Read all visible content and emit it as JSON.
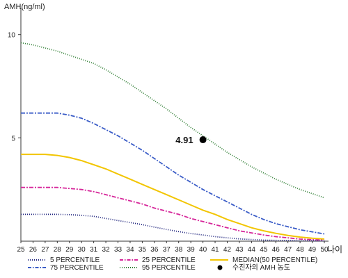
{
  "chart_data": {
    "type": "line",
    "ylabel": "AMH(ng/ml)",
    "xlabel": "나이",
    "xlim": [
      25,
      50
    ],
    "ylim": [
      0,
      11
    ],
    "y_ticks": [
      5,
      10
    ],
    "x": [
      25,
      26,
      27,
      28,
      29,
      30,
      31,
      32,
      33,
      34,
      35,
      36,
      37,
      38,
      39,
      40,
      41,
      42,
      43,
      44,
      45,
      46,
      47,
      48,
      49,
      50
    ],
    "series": [
      {
        "name": "95 PERCENTILE",
        "color": "#2e7d32",
        "dash": "1,2",
        "values": [
          9.6,
          9.5,
          9.35,
          9.2,
          9.0,
          8.8,
          8.6,
          8.3,
          7.95,
          7.6,
          7.2,
          6.8,
          6.4,
          5.95,
          5.5,
          5.1,
          4.7,
          4.3,
          3.95,
          3.6,
          3.3,
          3.0,
          2.75,
          2.5,
          2.3,
          2.1
        ]
      },
      {
        "name": "75 PERCENTILE",
        "color": "#3a5cc7",
        "dash": "6,2,2,2",
        "values": [
          6.2,
          6.2,
          6.2,
          6.2,
          6.1,
          5.95,
          5.7,
          5.4,
          5.1,
          4.75,
          4.4,
          4.0,
          3.6,
          3.2,
          2.85,
          2.5,
          2.2,
          1.9,
          1.6,
          1.3,
          1.05,
          0.85,
          0.7,
          0.55,
          0.45,
          0.35
        ]
      },
      {
        "name": "MEDIAN(50 PERCENTILE)",
        "color": "#f2c500",
        "dash": "",
        "values": [
          4.2,
          4.2,
          4.2,
          4.15,
          4.05,
          3.9,
          3.7,
          3.5,
          3.25,
          3.0,
          2.75,
          2.5,
          2.25,
          2.0,
          1.75,
          1.5,
          1.3,
          1.05,
          0.85,
          0.65,
          0.5,
          0.38,
          0.28,
          0.2,
          0.14,
          0.1
        ]
      },
      {
        "name": "25 PERCENTILE",
        "color": "#d6269a",
        "dash": "6,2,2,2",
        "values": [
          2.6,
          2.6,
          2.6,
          2.6,
          2.55,
          2.5,
          2.4,
          2.25,
          2.1,
          1.95,
          1.8,
          1.6,
          1.45,
          1.3,
          1.1,
          0.95,
          0.8,
          0.65,
          0.5,
          0.4,
          0.3,
          0.22,
          0.16,
          0.1,
          0.07,
          0.05
        ]
      },
      {
        "name": "5 PERCENTILE",
        "color": "#1a1f7a",
        "dash": "1,2",
        "values": [
          1.3,
          1.3,
          1.3,
          1.3,
          1.28,
          1.25,
          1.2,
          1.1,
          1.0,
          0.9,
          0.8,
          0.68,
          0.57,
          0.46,
          0.37,
          0.3,
          0.22,
          0.16,
          0.11,
          0.08,
          0.05,
          0.04,
          0.03,
          0.02,
          0.02,
          0.01
        ]
      }
    ],
    "points": [
      {
        "name": "수진자의 AMH 농도",
        "x": 40,
        "y": 4.91,
        "label": "4.91",
        "color": "#000000"
      }
    ],
    "legend": [
      {
        "label": "5 PERCENTILE",
        "color": "#1a1f7a",
        "style": "dotted"
      },
      {
        "label": "25 PERCENTILE",
        "color": "#d6269a",
        "style": "dashdot"
      },
      {
        "label": "MEDIAN(50 PERCENTILE)",
        "color": "#f2c500",
        "style": "solid"
      },
      {
        "label": "75 PERCENTILE",
        "color": "#3a5cc7",
        "style": "dashdot"
      },
      {
        "label": "95 PERCENTILE",
        "color": "#2e7d32",
        "style": "dotted"
      },
      {
        "label": "수진자의 AMH 농도",
        "color": "#000000",
        "style": "marker"
      }
    ],
    "legend_position": "bottom",
    "grid": false
  }
}
